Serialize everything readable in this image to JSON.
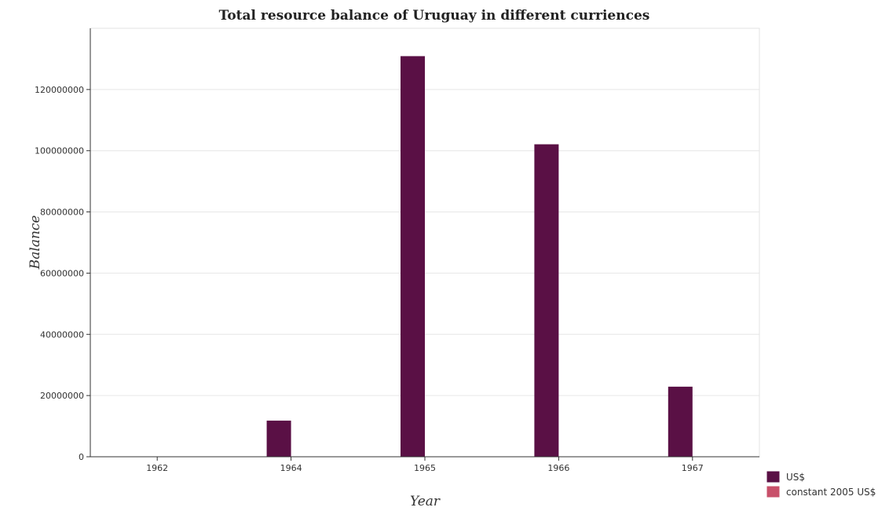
{
  "chart_data": {
    "type": "bar",
    "title": "Total resource balance of Uruguay in different curriences",
    "xlabel": "Year",
    "ylabel": "Balance",
    "categories": [
      "1962",
      "1964",
      "1965",
      "1966",
      "1967"
    ],
    "series": [
      {
        "name": "US$",
        "color": "#5a1045",
        "values": [
          0,
          11800000,
          130900000,
          102100000,
          22900000
        ]
      },
      {
        "name": "constant 2005 US$",
        "color": "#c8506a",
        "values": [
          0,
          0,
          0,
          0,
          0
        ]
      }
    ],
    "ylim": [
      0,
      140000000
    ],
    "yticks": [
      0,
      20000000,
      40000000,
      60000000,
      80000000,
      100000000,
      120000000
    ],
    "ytick_labels": [
      "0",
      "20000000",
      "40000000",
      "60000000",
      "80000000",
      "100000000",
      "120000000"
    ],
    "grid": true,
    "legend": "bottom-right"
  }
}
